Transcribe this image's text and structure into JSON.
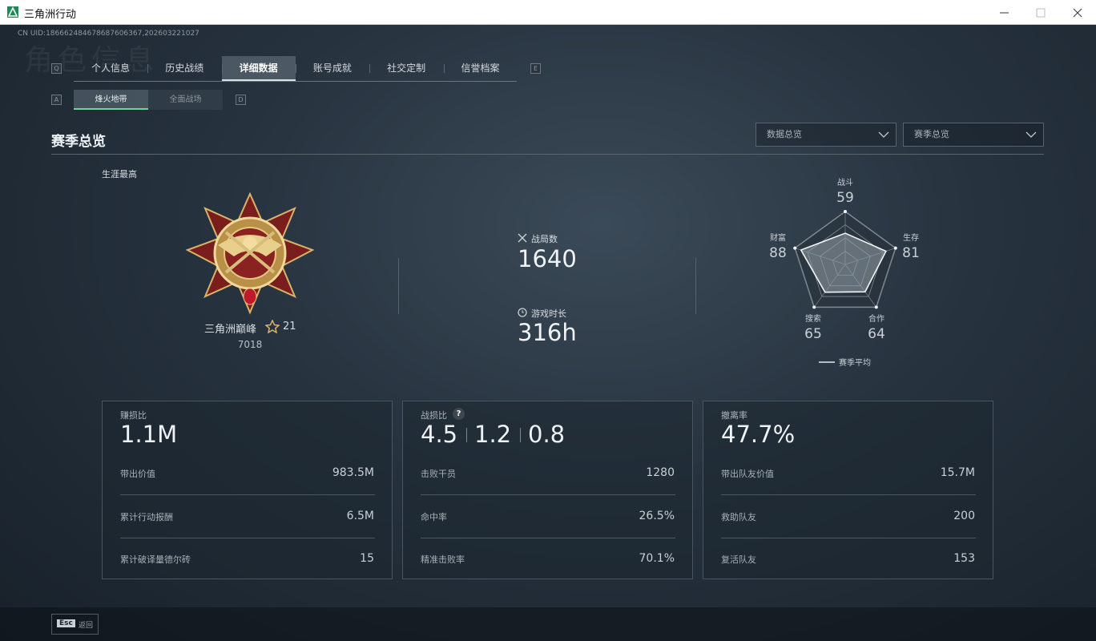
{
  "window": {
    "title": "三角洲行动"
  },
  "uid": "CN UID:186662484678687606367,202603221027",
  "bg_title": "角色信息",
  "tabs": {
    "prev_key": "Q",
    "next_key": "E",
    "items": [
      "个人信息",
      "历史战绩",
      "详细数据",
      "账号成就",
      "社交定制",
      "信誉档案"
    ]
  },
  "subtabs": {
    "prev_key": "A",
    "next_key": "D",
    "items": [
      "烽火地带",
      "全面战场"
    ]
  },
  "section": {
    "title": "赛季总览",
    "dropdowns": [
      "数据总览",
      "赛季总览"
    ]
  },
  "career": {
    "label": "生涯最高",
    "rank": "三角洲巅峰",
    "stars": "21",
    "points": "7018"
  },
  "stats": [
    {
      "label": "战局数",
      "value": "1640"
    },
    {
      "label": "游戏时长",
      "value": "316h"
    }
  ],
  "radar": {
    "rlim": [
      0,
      100
    ],
    "axes": [
      {
        "name": "战斗",
        "value": 59
      },
      {
        "name": "生存",
        "value": 81
      },
      {
        "name": "合作",
        "value": 64
      },
      {
        "name": "搜索",
        "value": 65
      },
      {
        "name": "财富",
        "value": 88
      }
    ],
    "legend": "赛季平均"
  },
  "cards": [
    {
      "label": "赚损比",
      "big": [
        "1.1M"
      ],
      "rows": [
        [
          "带出价值",
          "983.5M"
        ],
        [
          "累计行动报酬",
          "6.5M"
        ],
        [
          "累计破译量德尔砖",
          "15"
        ]
      ]
    },
    {
      "label": "战损比",
      "help": "?",
      "big": [
        "4.5",
        "1.2",
        "0.8"
      ],
      "rows": [
        [
          "击败干员",
          "1280"
        ],
        [
          "命中率",
          "26.5%"
        ],
        [
          "精准击败率",
          "70.1%"
        ]
      ]
    },
    {
      "label": "撤离率",
      "big": [
        "47.7%"
      ],
      "rows": [
        [
          "带出队友价值",
          "15.7M"
        ],
        [
          "救助队友",
          "200"
        ],
        [
          "复活队友",
          "153"
        ]
      ]
    }
  ],
  "footer": {
    "key": "Esc",
    "label": "返回"
  }
}
